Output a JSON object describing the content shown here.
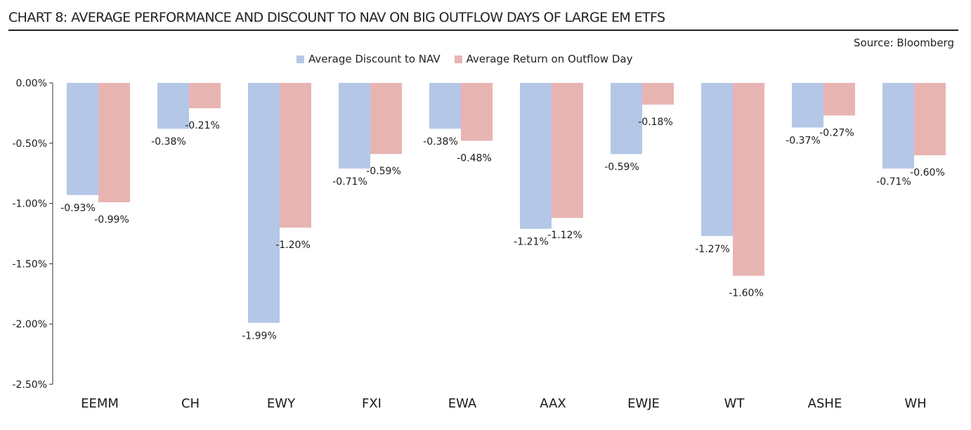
{
  "title": "CHART 8: AVERAGE PERFORMANCE AND DISCOUNT TO NAV ON BIG OUTFLOW DAYS OF LARGE EM ETFS",
  "source": "Source: Bloomberg",
  "colors": {
    "discount": "#b4c7e7",
    "return": "#e8b4b2",
    "axis": "#333333"
  },
  "chart_data": {
    "type": "bar",
    "title": "CHART 8: AVERAGE PERFORMANCE AND DISCOUNT TO NAV ON BIG OUTFLOW DAYS OF LARGE EM ETFS",
    "xlabel": "",
    "ylabel": "",
    "ylim": [
      -2.5,
      0
    ],
    "yticks": [
      0,
      -0.5,
      -1.0,
      -1.5,
      -2.0,
      -2.5
    ],
    "ytick_labels": [
      "0.00%",
      "-0.50%",
      "-1.00%",
      "-1.50%",
      "-2.00%",
      "-2.50%"
    ],
    "legend_position": "top-center",
    "categories": [
      "EEMM",
      "CH",
      "EWY",
      "FXI",
      "EWA",
      "AAX",
      "EWJE",
      "WT",
      "ASHE",
      "WH"
    ],
    "series": [
      {
        "name": "Average Discount to NAV",
        "values": [
          -0.93,
          -0.38,
          -1.99,
          -0.71,
          -0.38,
          -1.21,
          -0.59,
          -1.27,
          -0.37,
          -0.71
        ],
        "labels": [
          "-0.93%",
          "-0.38%",
          "-1.99%",
          "-0.71%",
          "-0.38%",
          "-1.21%",
          "-0.59%",
          "-1.27%",
          "-0.37%",
          "-0.71%"
        ]
      },
      {
        "name": "Average Return on Outflow Day",
        "values": [
          -0.99,
          -0.21,
          -1.2,
          -0.59,
          -0.48,
          -1.12,
          -0.18,
          -1.6,
          -0.27,
          -0.6
        ],
        "labels": [
          "-0.99%",
          "-0.21%",
          "-1.20%",
          "-0.59%",
          "-0.48%",
          "-1.12%",
          "-0.18%",
          "-1.60%",
          "-0.27%",
          "-0.60%"
        ]
      }
    ]
  }
}
